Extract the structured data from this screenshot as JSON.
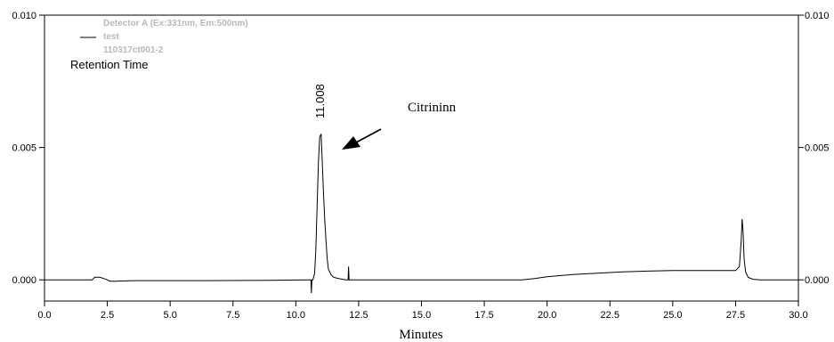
{
  "chart_data": {
    "type": "line",
    "title": "",
    "xlabel": "Minutes",
    "ylabel": "",
    "xlim": [
      0,
      30
    ],
    "ylim": [
      -0.0008,
      0.01
    ],
    "x_ticks": [
      0.0,
      2.5,
      5.0,
      7.5,
      10.0,
      12.5,
      15.0,
      17.5,
      20.0,
      22.5,
      25.0,
      27.5,
      30.0
    ],
    "x_tick_labels": [
      "0.0",
      "2.5",
      "5.0",
      "7.5",
      "10.0",
      "12.5",
      "15.0",
      "17.5",
      "20.0",
      "22.5",
      "25.0",
      "27.5",
      "30.0"
    ],
    "y_ticks": [
      0.0,
      0.005,
      0.01
    ],
    "y_tick_labels": [
      "0.000",
      "0.005",
      "0.010"
    ],
    "y_axis_both_sides": true,
    "grid": false,
    "legend": {
      "placement": "top-left",
      "lines": [
        "Detector A (Ex:331nm, Em:500nm)",
        "test",
        "110317ct001-2"
      ]
    },
    "series": [
      {
        "color": "#000000",
        "x": [
          0.0,
          1.9,
          2.0,
          2.2,
          2.5,
          2.6,
          2.8,
          3.5,
          6.0,
          9.0,
          10.4,
          10.55,
          10.6,
          10.62,
          10.64,
          10.66,
          10.68,
          10.75,
          10.8,
          10.85,
          10.9,
          10.95,
          11.0,
          11.008,
          11.05,
          11.1,
          11.15,
          11.2,
          11.25,
          11.3,
          11.4,
          11.5,
          11.7,
          12.0,
          12.08,
          12.1,
          12.12,
          12.14,
          12.3,
          14.0,
          16.0,
          18.0,
          19.0,
          19.5,
          20.0,
          21.0,
          22.0,
          23.0,
          24.0,
          25.0,
          26.0,
          27.0,
          27.5,
          27.65,
          27.72,
          27.76,
          27.8,
          27.84,
          27.9,
          28.0,
          28.2,
          28.5,
          29.0,
          30.0
        ],
        "y": [
          0.0,
          0.0,
          0.0001,
          0.0001,
          0.0,
          -5e-05,
          -5e-05,
          -3e-05,
          -3e-05,
          -2e-05,
          0.0,
          0.0,
          0.0,
          -0.0005,
          0.0,
          0.0,
          0.0,
          0.00025,
          0.0012,
          0.0028,
          0.0044,
          0.0054,
          0.0055,
          0.0055,
          0.0045,
          0.0033,
          0.0023,
          0.0015,
          0.0008,
          0.0004,
          0.0002,
          0.0001,
          5e-05,
          0.0,
          0.0,
          0.0005,
          0.0,
          0.0,
          0.0,
          0.0,
          0.0,
          0.0,
          0.0,
          5e-05,
          0.00012,
          0.0002,
          0.00025,
          0.0003,
          0.00033,
          0.00035,
          0.00035,
          0.00035,
          0.00035,
          0.0005,
          0.0014,
          0.0023,
          0.0018,
          0.0008,
          0.0003,
          0.0001,
          2e-05,
          0.0,
          0.0,
          0.0
        ]
      }
    ],
    "annotations": {
      "retention_label": "Retention Time",
      "peak_label": "11.008",
      "peak_x": 11.008,
      "compound_label": "Citrininn",
      "compound_arrow": true
    }
  }
}
